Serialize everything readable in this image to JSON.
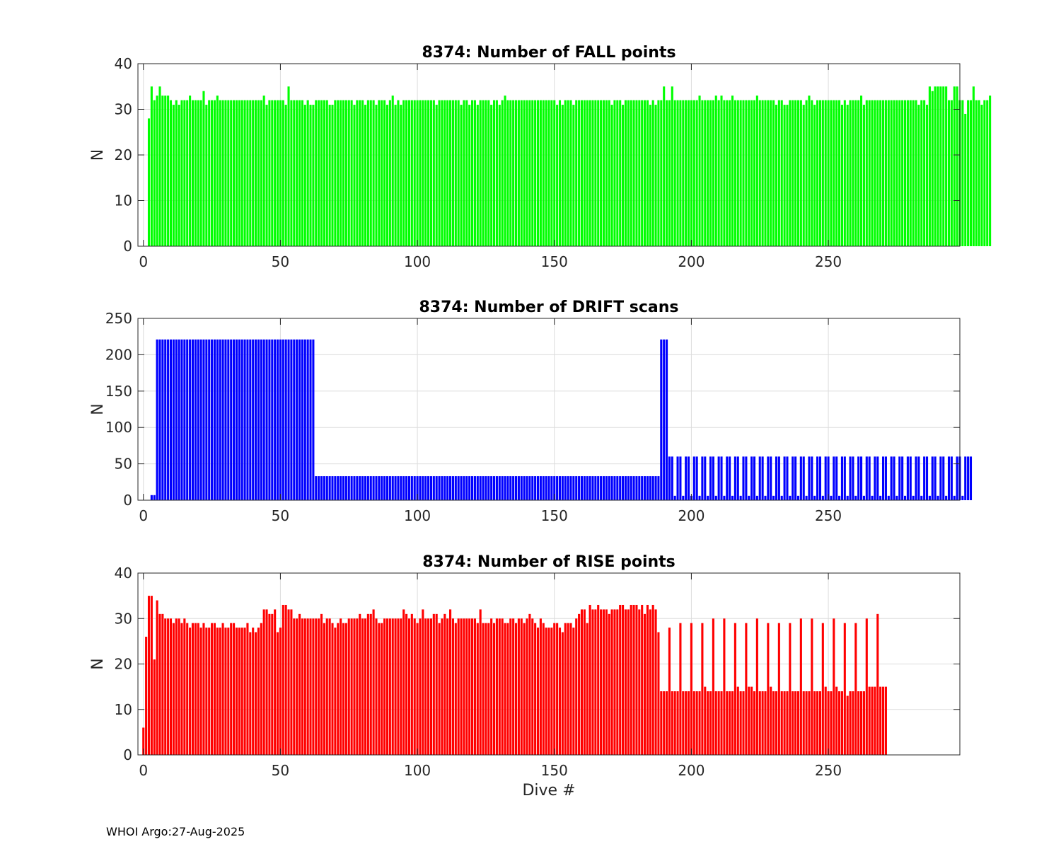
{
  "footer": {
    "text": "WHOI Argo:27-Aug-2025"
  },
  "chart_data": [
    {
      "type": "bar",
      "title": "8374: Number of FALL points",
      "xlabel": "",
      "ylabel": "N",
      "xlim": [
        -2,
        298
      ],
      "ylim": [
        0,
        40
      ],
      "xticks": [
        0,
        50,
        100,
        150,
        200,
        250
      ],
      "yticks": [
        0,
        10,
        20,
        30,
        40
      ],
      "grid": true,
      "color": "#00ff00",
      "x_start": 1,
      "values": [
        0,
        28,
        35,
        32,
        33,
        35,
        33,
        33,
        33,
        32,
        31,
        32,
        31,
        32,
        32,
        32,
        33,
        32,
        32,
        32,
        32,
        34,
        31,
        32,
        32,
        32,
        33,
        32,
        32,
        32,
        32,
        32,
        32,
        32,
        32,
        32,
        32,
        32,
        32,
        32,
        32,
        32,
        32,
        33,
        31,
        32,
        32,
        32,
        32,
        32,
        32,
        31,
        35,
        32,
        32,
        32,
        32,
        32,
        31,
        32,
        31,
        31,
        32,
        32,
        32,
        32,
        32,
        31,
        31,
        32,
        32,
        32,
        32,
        32,
        32,
        32,
        31,
        32,
        32,
        32,
        31,
        32,
        32,
        32,
        31,
        32,
        32,
        32,
        31,
        32,
        33,
        31,
        32,
        31,
        32,
        32,
        32,
        32,
        32,
        32,
        32,
        32,
        32,
        32,
        32,
        32,
        31,
        32,
        32,
        32,
        32,
        32,
        32,
        32,
        32,
        31,
        32,
        32,
        31,
        32,
        32,
        31,
        32,
        32,
        32,
        32,
        31,
        32,
        32,
        31,
        32,
        33,
        32,
        32,
        32,
        32,
        32,
        32,
        32,
        32,
        32,
        32,
        32,
        32,
        32,
        32,
        32,
        32,
        32,
        32,
        31,
        32,
        31,
        32,
        32,
        32,
        31,
        32,
        32,
        32,
        32,
        32,
        32,
        32,
        32,
        32,
        32,
        32,
        32,
        32,
        31,
        32,
        32,
        32,
        31,
        32,
        32,
        32,
        32,
        32,
        32,
        32,
        32,
        32,
        31,
        32,
        31,
        32,
        32,
        35,
        32,
        32,
        35,
        32,
        32,
        32,
        32,
        32,
        32,
        32,
        32,
        32,
        33,
        32,
        32,
        32,
        32,
        32,
        33,
        32,
        33,
        32,
        32,
        32,
        33,
        32,
        32,
        32,
        32,
        32,
        32,
        32,
        32,
        33,
        32,
        32,
        32,
        32,
        32,
        32,
        31,
        32,
        32,
        31,
        31,
        32,
        32,
        32,
        32,
        32,
        31,
        32,
        33,
        32,
        31,
        32,
        32,
        32,
        32,
        32,
        32,
        32,
        32,
        32,
        31,
        32,
        31,
        32,
        32,
        32,
        32,
        33,
        31,
        32,
        32,
        32,
        32,
        32,
        32,
        32,
        32,
        32,
        32,
        32,
        32,
        32,
        32,
        32,
        32,
        32,
        32,
        32,
        31,
        32,
        32,
        31,
        35,
        34,
        35,
        35,
        35,
        35,
        35,
        32,
        32,
        35,
        35,
        32,
        32,
        29,
        32,
        32,
        35,
        32,
        32,
        31,
        32,
        32,
        33
      ]
    },
    {
      "type": "bar",
      "title": "8374: Number of DRIFT scans",
      "xlabel": "",
      "ylabel": "N",
      "xlim": [
        -2,
        298
      ],
      "ylim": [
        0,
        250
      ],
      "xticks": [
        0,
        50,
        100,
        150,
        200,
        250
      ],
      "yticks": [
        0,
        50,
        100,
        150,
        200,
        250
      ],
      "grid": true,
      "color": "#0000ff",
      "x_start": 1,
      "values": [
        0,
        0,
        7,
        7,
        221,
        221,
        221,
        221,
        221,
        221,
        221,
        221,
        221,
        221,
        221,
        221,
        221,
        221,
        221,
        221,
        221,
        221,
        221,
        221,
        221,
        221,
        221,
        221,
        221,
        221,
        221,
        221,
        221,
        221,
        221,
        221,
        221,
        221,
        221,
        221,
        221,
        221,
        221,
        221,
        221,
        221,
        221,
        221,
        221,
        221,
        221,
        221,
        221,
        221,
        221,
        221,
        221,
        221,
        221,
        221,
        221,
        221,
        33,
        33,
        33,
        33,
        33,
        33,
        33,
        33,
        33,
        33,
        33,
        33,
        33,
        33,
        33,
        33,
        33,
        33,
        33,
        33,
        33,
        33,
        33,
        33,
        33,
        33,
        33,
        33,
        33,
        33,
        33,
        33,
        33,
        33,
        33,
        33,
        33,
        33,
        33,
        33,
        33,
        33,
        33,
        33,
        33,
        33,
        33,
        33,
        33,
        33,
        33,
        33,
        33,
        33,
        33,
        33,
        33,
        33,
        33,
        33,
        33,
        33,
        33,
        33,
        33,
        33,
        33,
        33,
        33,
        33,
        33,
        33,
        33,
        33,
        33,
        33,
        33,
        33,
        33,
        33,
        33,
        33,
        33,
        33,
        33,
        33,
        33,
        33,
        33,
        33,
        33,
        33,
        33,
        33,
        33,
        33,
        33,
        33,
        33,
        33,
        33,
        33,
        33,
        33,
        33,
        33,
        33,
        33,
        33,
        33,
        33,
        33,
        33,
        33,
        33,
        33,
        33,
        33,
        33,
        33,
        33,
        33,
        33,
        33,
        33,
        33,
        221,
        221,
        221,
        60,
        60,
        6,
        60,
        60,
        6,
        60,
        60,
        6,
        60,
        60,
        6,
        60,
        60,
        6,
        60,
        60,
        6,
        60,
        60,
        6,
        60,
        60,
        6,
        60,
        60,
        6,
        60,
        60,
        6,
        60,
        60,
        6,
        60,
        60,
        6,
        60,
        60,
        6,
        60,
        60,
        6,
        60,
        60,
        6,
        60,
        60,
        6,
        60,
        60,
        6,
        60,
        60,
        6,
        60,
        60,
        6,
        60,
        60,
        6,
        60,
        60,
        6,
        60,
        60,
        6,
        60,
        60,
        6,
        60,
        60,
        6,
        60,
        60,
        6,
        60,
        60,
        6,
        60,
        60,
        6,
        60,
        60,
        6,
        60,
        60,
        6,
        60,
        60,
        6,
        60,
        60,
        6,
        60,
        60,
        6,
        60,
        60,
        6,
        60,
        60,
        6,
        60,
        60,
        6,
        60,
        60,
        6,
        60,
        60,
        60
      ]
    },
    {
      "type": "bar",
      "title": "8374: Number of RISE points",
      "xlabel": "Dive #",
      "ylabel": "N",
      "xlim": [
        -2,
        298
      ],
      "ylim": [
        0,
        40
      ],
      "xticks": [
        0,
        50,
        100,
        150,
        200,
        250
      ],
      "yticks": [
        0,
        10,
        20,
        30,
        40
      ],
      "grid": true,
      "color": "#ff0000",
      "x_start": 0,
      "values": [
        6,
        26,
        35,
        35,
        21,
        34,
        31,
        31,
        30,
        30,
        30,
        29,
        30,
        30,
        29,
        30,
        29,
        28,
        29,
        29,
        29,
        28,
        29,
        28,
        28,
        29,
        29,
        28,
        28,
        29,
        28,
        28,
        29,
        29,
        28,
        28,
        28,
        28,
        29,
        27,
        28,
        27,
        28,
        29,
        32,
        32,
        31,
        31,
        32,
        27,
        28,
        33,
        33,
        32,
        32,
        30,
        30,
        31,
        30,
        30,
        30,
        30,
        30,
        30,
        30,
        31,
        29,
        30,
        30,
        29,
        28,
        29,
        30,
        29,
        29,
        30,
        30,
        30,
        30,
        31,
        30,
        30,
        31,
        31,
        32,
        30,
        29,
        29,
        30,
        30,
        30,
        30,
        30,
        30,
        30,
        32,
        31,
        30,
        31,
        30,
        29,
        30,
        32,
        30,
        30,
        30,
        31,
        31,
        29,
        30,
        31,
        30,
        32,
        30,
        29,
        30,
        30,
        30,
        30,
        30,
        30,
        30,
        29,
        32,
        29,
        29,
        29,
        30,
        29,
        30,
        30,
        30,
        29,
        29,
        30,
        30,
        29,
        30,
        30,
        29,
        30,
        31,
        30,
        29,
        28,
        30,
        29,
        28,
        28,
        28,
        29,
        29,
        28,
        27,
        29,
        29,
        29,
        28,
        30,
        31,
        32,
        32,
        29,
        33,
        32,
        32,
        33,
        32,
        32,
        32,
        31,
        32,
        32,
        32,
        33,
        33,
        32,
        32,
        33,
        33,
        33,
        32,
        33,
        31,
        33,
        32,
        33,
        32,
        27,
        14,
        14,
        14,
        28,
        14,
        14,
        14,
        29,
        14,
        14,
        14,
        29,
        14,
        14,
        14,
        29,
        15,
        14,
        14,
        30,
        14,
        14,
        14,
        30,
        14,
        14,
        14,
        29,
        15,
        14,
        14,
        29,
        15,
        15,
        14,
        30,
        14,
        14,
        14,
        29,
        15,
        14,
        14,
        29,
        14,
        14,
        14,
        29,
        14,
        14,
        14,
        30,
        14,
        14,
        14,
        30,
        14,
        14,
        14,
        29,
        15,
        14,
        14,
        30,
        15,
        14,
        14,
        29,
        13,
        14,
        14,
        29,
        14,
        14,
        14,
        30,
        15,
        15,
        15,
        31,
        15,
        15,
        15
      ]
    }
  ]
}
